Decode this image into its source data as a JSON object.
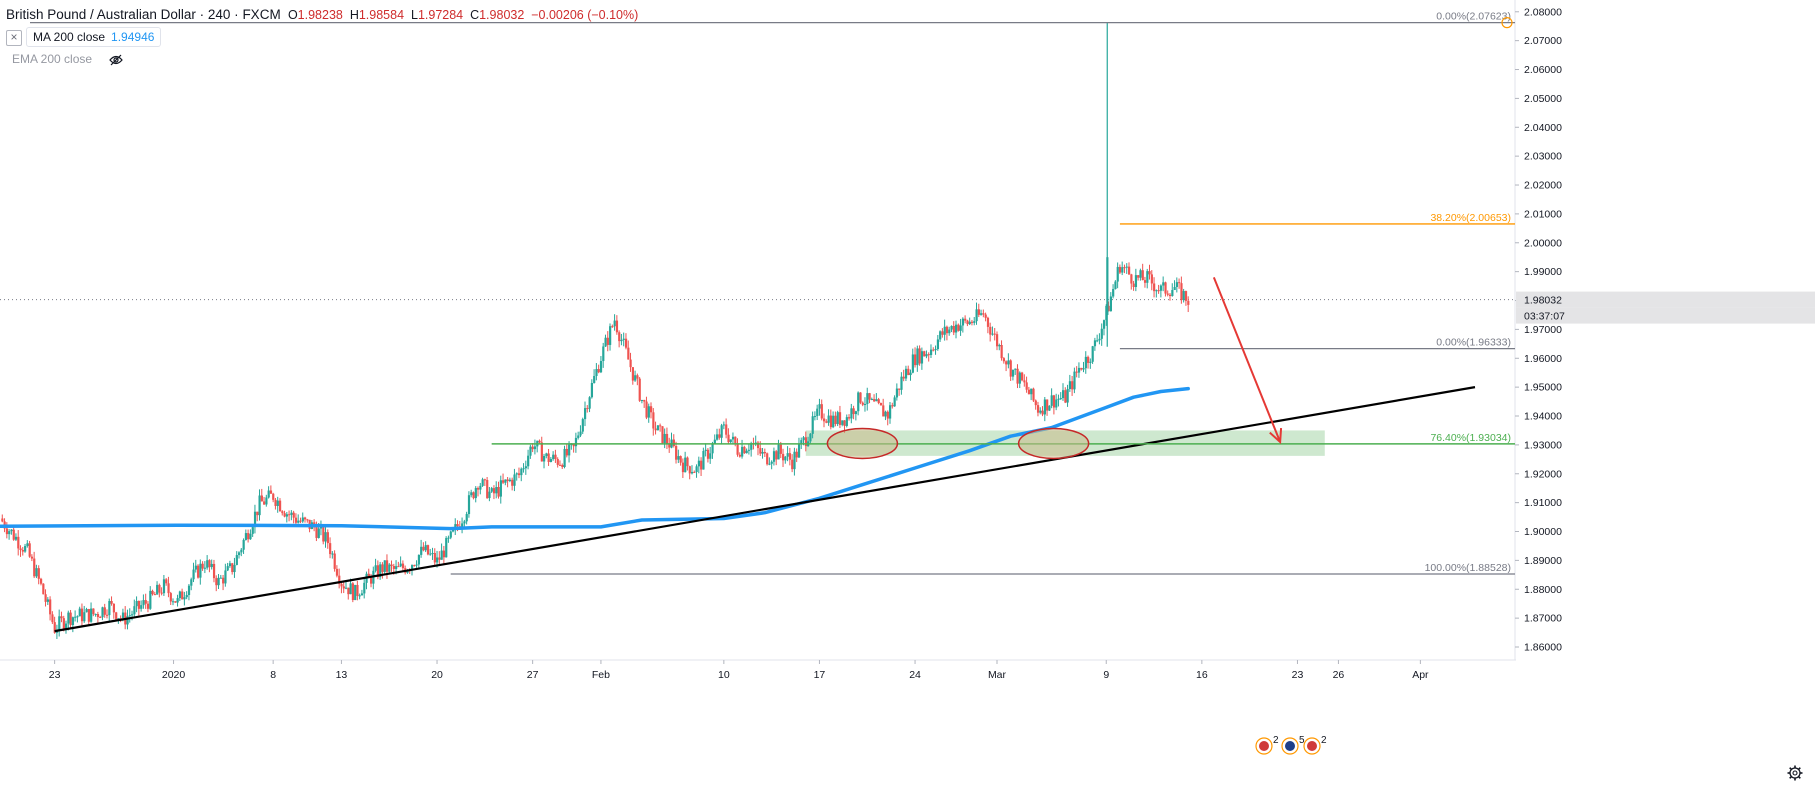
{
  "header": {
    "symbol": "British Pound / Australian Dollar",
    "separator": "·",
    "interval": "240",
    "source": "FXCM",
    "open_label": "O",
    "open": "1.98238",
    "high_label": "H",
    "high": "1.98584",
    "low_label": "L",
    "low": "1.97284",
    "close_label": "C",
    "close": "1.98032",
    "change": "−0.00206 (−0.10%)"
  },
  "indicators": [
    {
      "name": "MA 200 close",
      "value": "1.94946",
      "color": "#2196f3",
      "visible": true,
      "close_icon": "close-x-icon"
    },
    {
      "name": "EMA 200 close",
      "value": "",
      "visible": false,
      "hidden_icon": "eye-crossed-icon"
    }
  ],
  "price_axis": {
    "ticks": [
      "2.08000",
      "2.07000",
      "2.06000",
      "2.05000",
      "2.04000",
      "2.03000",
      "2.02000",
      "2.01000",
      "2.00000",
      "1.99000",
      "1.98000",
      "1.97000",
      "1.96000",
      "1.95000",
      "1.94000",
      "1.93000",
      "1.92000",
      "1.91000",
      "1.90000",
      "1.89000",
      "1.88000",
      "1.87000",
      "1.86000"
    ],
    "last_price_label": "1.98032",
    "countdown_label": "03:37:07"
  },
  "time_axis": {
    "ticks": [
      "23",
      "2020",
      "8",
      "13",
      "20",
      "27",
      "Feb",
      "10",
      "17",
      "24",
      "Mar",
      "9",
      "16",
      "23",
      "26",
      "Apr"
    ]
  },
  "fib_levels": [
    {
      "label": "0.00%(2.07623)",
      "price": 2.07623,
      "color": "#787b86"
    },
    {
      "label": "38.20%(2.00653)",
      "price": 2.00653,
      "color": "#ff9800"
    },
    {
      "label": "0.00%(1.96333)",
      "price": 1.96333,
      "color": "#787b86"
    },
    {
      "label": "76.40%(1.93034)",
      "price": 1.93034,
      "color": "#4caf50"
    },
    {
      "label": "100.00%(1.88528)",
      "price": 1.88528,
      "color": "#787b86"
    }
  ],
  "settings_icon": "gear-icon",
  "event_markers": [
    "flag-uk-icon",
    "flag-au-icon",
    "flag-uk-icon"
  ],
  "event_counts": [
    "2",
    "5",
    "2"
  ],
  "colors": {
    "up": "#26a69a",
    "down": "#ef5350",
    "ma": "#2196f3",
    "trendline": "#000000",
    "zone": "#a5d6a7",
    "arrow": "#e53935",
    "ellipse_stroke": "#c62828",
    "ellipse_fill": "#c8b98a"
  },
  "chart_data": {
    "type": "candlestick",
    "instrument": "British Pound / Australian Dollar",
    "timeframe": "240",
    "y_range": [
      1.8555,
      2.082
    ],
    "x_range_days": [
      "2019-12-19",
      "2020-04-05"
    ],
    "series": [
      {
        "name": "price_path_approx",
        "points": [
          [
            "2019-12-19",
            1.9045
          ],
          [
            "2019-12-21",
            1.893
          ],
          [
            "2019-12-22",
            1.881
          ],
          [
            "2019-12-23",
            1.8665
          ],
          [
            "2019-12-24",
            1.8705
          ],
          [
            "2019-12-26",
            1.8715
          ],
          [
            "2019-12-27",
            1.8745
          ],
          [
            "2019-12-28",
            1.8695
          ],
          [
            "2019-12-30",
            1.8765
          ],
          [
            "2019-12-31",
            1.881
          ],
          [
            "2020-01-01",
            1.8755
          ],
          [
            "2020-01-02",
            1.8835
          ],
          [
            "2020-01-03",
            1.8895
          ],
          [
            "2020-01-04",
            1.8825
          ],
          [
            "2020-01-05",
            1.8875
          ],
          [
            "2020-01-06",
            1.8985
          ],
          [
            "2020-01-07",
            1.9095
          ],
          [
            "2020-01-08",
            1.9125
          ],
          [
            "2020-01-09",
            1.9065
          ],
          [
            "2020-01-10",
            1.9035
          ],
          [
            "2020-01-11",
            1.9015
          ],
          [
            "2020-01-12",
            1.8965
          ],
          [
            "2020-01-13",
            1.8825
          ],
          [
            "2020-01-14",
            1.8785
          ],
          [
            "2020-01-15",
            1.8835
          ],
          [
            "2020-01-16",
            1.8875
          ],
          [
            "2020-01-17",
            1.8865
          ],
          [
            "2020-01-18",
            1.8885
          ],
          [
            "2020-01-19",
            1.8935
          ],
          [
            "2020-01-20",
            1.8895
          ],
          [
            "2020-01-21",
            1.8975
          ],
          [
            "2020-01-22",
            1.9065
          ],
          [
            "2020-01-23",
            1.9175
          ],
          [
            "2020-01-24",
            1.9125
          ],
          [
            "2020-01-25",
            1.9165
          ],
          [
            "2020-01-26",
            1.9195
          ],
          [
            "2020-01-27",
            1.9305
          ],
          [
            "2020-01-28",
            1.9255
          ],
          [
            "2020-01-29",
            1.9245
          ],
          [
            "2020-01-30",
            1.9285
          ],
          [
            "2020-01-31",
            1.9455
          ],
          [
            "2020-02-01",
            1.9605
          ],
          [
            "2020-02-02",
            1.9735
          ],
          [
            "2020-02-03",
            1.9595
          ],
          [
            "2020-02-04",
            1.9455
          ],
          [
            "2020-02-05",
            1.9355
          ],
          [
            "2020-02-06",
            1.9305
          ],
          [
            "2020-02-07",
            1.9235
          ],
          [
            "2020-02-08",
            1.9215
          ],
          [
            "2020-02-09",
            1.9285
          ],
          [
            "2020-02-10",
            1.9355
          ],
          [
            "2020-02-11",
            1.9285
          ],
          [
            "2020-02-12",
            1.9305
          ],
          [
            "2020-02-13",
            1.9255
          ],
          [
            "2020-02-14",
            1.9275
          ],
          [
            "2020-02-15",
            1.9245
          ],
          [
            "2020-02-16",
            1.9325
          ],
          [
            "2020-02-17",
            1.9415
          ],
          [
            "2020-02-18",
            1.9385
          ],
          [
            "2020-02-19",
            1.9395
          ],
          [
            "2020-02-20",
            1.9465
          ],
          [
            "2020-02-21",
            1.9435
          ],
          [
            "2020-02-22",
            1.9405
          ],
          [
            "2020-02-23",
            1.9525
          ],
          [
            "2020-02-24",
            1.9605
          ],
          [
            "2020-02-25",
            1.9625
          ],
          [
            "2020-02-26",
            1.9685
          ],
          [
            "2020-02-27",
            1.9715
          ],
          [
            "2020-02-28",
            1.9725
          ],
          [
            "2020-02-29",
            1.9755
          ],
          [
            "2020-03-01",
            1.9655
          ],
          [
            "2020-03-02",
            1.9565
          ],
          [
            "2020-03-03",
            1.9505
          ],
          [
            "2020-03-04",
            1.9425
          ],
          [
            "2020-03-05",
            1.9455
          ],
          [
            "2020-03-06",
            1.9465
          ],
          [
            "2020-03-07",
            1.9565
          ],
          [
            "2020-03-08",
            1.9625
          ],
          [
            "2020-03-09",
            1.9755
          ],
          [
            "2020-03-10",
            1.9925
          ],
          [
            "2020-03-11",
            1.9875
          ],
          [
            "2020-03-12",
            1.9875
          ],
          [
            "2020-03-13",
            1.9835
          ],
          [
            "2020-03-14",
            1.9845
          ],
          [
            "2020-03-15",
            1.9803
          ]
        ]
      },
      {
        "name": "MA 200 close",
        "points": [
          [
            "2019-12-19",
            1.9018
          ],
          [
            "2020-01-01",
            1.9022
          ],
          [
            "2020-01-13",
            1.902
          ],
          [
            "2020-01-21",
            1.901
          ],
          [
            "2020-01-24",
            1.9016
          ],
          [
            "2020-02-01",
            1.9016
          ],
          [
            "2020-02-04",
            1.904
          ],
          [
            "2020-02-10",
            1.9045
          ],
          [
            "2020-02-13",
            1.9065
          ],
          [
            "2020-02-17",
            1.9115
          ],
          [
            "2020-02-20",
            1.916
          ],
          [
            "2020-02-24",
            1.922
          ],
          [
            "2020-02-28",
            1.928
          ],
          [
            "2020-03-02",
            1.933
          ],
          [
            "2020-03-05",
            1.936
          ],
          [
            "2020-03-07",
            1.9395
          ],
          [
            "2020-03-09",
            1.943
          ],
          [
            "2020-03-11",
            1.9465
          ],
          [
            "2020-03-13",
            1.9485
          ],
          [
            "2020-03-15",
            1.9495
          ]
        ]
      }
    ],
    "trendline": [
      [
        "2019-12-23",
        1.8655
      ],
      [
        "2020-04-05",
        1.95
      ]
    ],
    "zone": {
      "from": "2020-02-16",
      "to": "2020-03-25",
      "low": 1.9262,
      "high": 1.935
    },
    "arrow": {
      "from": [
        "2020-03-16",
        1.988
      ],
      "to": [
        "2020-03-21",
        1.931
      ]
    },
    "ellipses": [
      {
        "center": [
          "2020-02-20",
          1.9305
        ]
      },
      {
        "center": [
          "2020-03-05",
          1.9305
        ]
      }
    ],
    "spike": {
      "date": "2020-03-09",
      "high": 2.07623,
      "low": 1.964
    }
  }
}
